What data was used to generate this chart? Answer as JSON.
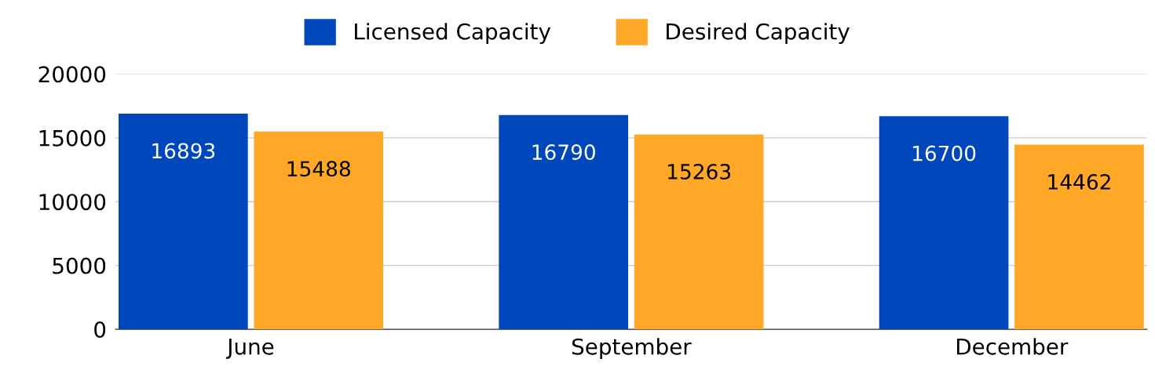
{
  "chart_data": {
    "type": "bar",
    "categories": [
      "June",
      "September",
      "December"
    ],
    "series": [
      {
        "name": "Licensed Capacity",
        "color": "#0047bb",
        "values": [
          16893,
          16790,
          16700
        ]
      },
      {
        "name": "Desired Capacity",
        "color": "#ffa726",
        "values": [
          15488,
          15263,
          14462
        ]
      }
    ],
    "ylim": [
      0,
      20000
    ],
    "yticks": [
      0,
      5000,
      10000,
      15000,
      20000
    ],
    "grid": "y",
    "legend": "top",
    "data_labels": true
  }
}
